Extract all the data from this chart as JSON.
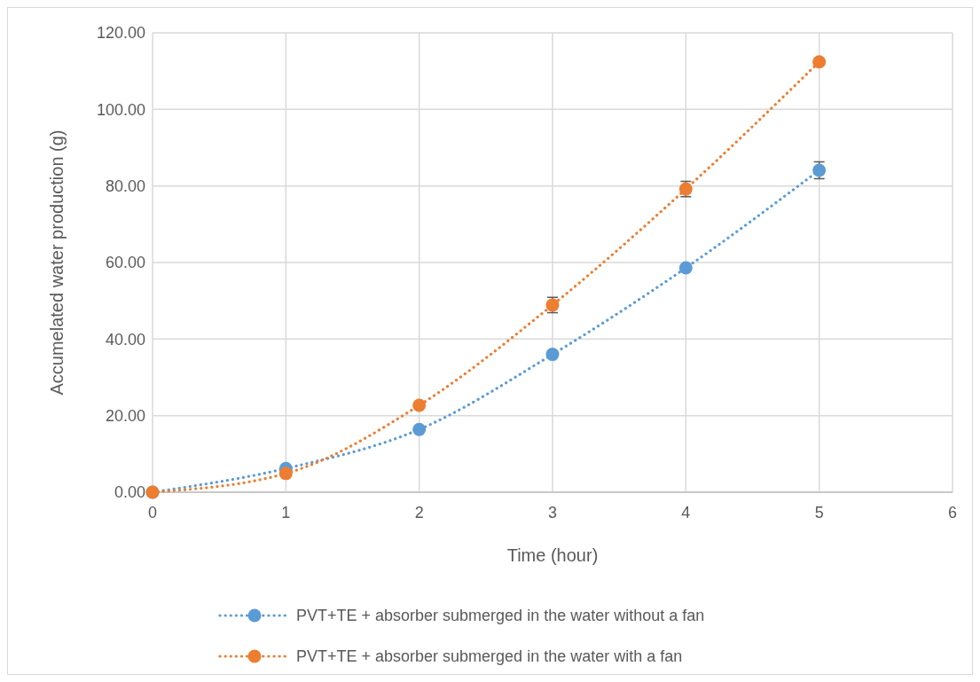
{
  "chart_data": {
    "type": "line",
    "xlabel": "Time (hour)",
    "ylabel": "Accumelated water production (g)",
    "x": [
      0,
      1,
      2,
      3,
      4,
      5
    ],
    "series": [
      {
        "name": "PVT+TE + absorber submerged in the water without a fan",
        "color": "#5b9bd5",
        "values": [
          0,
          6.2,
          16.4,
          36.0,
          58.6,
          84.1
        ],
        "errors": [
          null,
          null,
          null,
          null,
          null,
          2.2
        ]
      },
      {
        "name": "PVT+TE + absorber submerged in the water with a fan",
        "color": "#ed7d31",
        "values": [
          0,
          4.9,
          22.7,
          48.9,
          79.2,
          112.4
        ],
        "errors": [
          null,
          null,
          null,
          2.0,
          2.0,
          null
        ]
      }
    ],
    "xlim": [
      0,
      6
    ],
    "xticks": [
      0,
      1,
      2,
      3,
      4,
      5,
      6
    ],
    "ylim": [
      0,
      120
    ],
    "yticks": [
      {
        "value": 0,
        "label": "0.00"
      },
      {
        "value": 20,
        "label": "20.00"
      },
      {
        "value": 40,
        "label": "40.00"
      },
      {
        "value": 60,
        "label": "60.00"
      },
      {
        "value": 80,
        "label": "80.00"
      },
      {
        "value": 100,
        "label": "100.00"
      },
      {
        "value": 120,
        "label": "120.00"
      }
    ],
    "grid": true,
    "legend": "bottom",
    "marker": "circle",
    "line_style": "dotted"
  }
}
